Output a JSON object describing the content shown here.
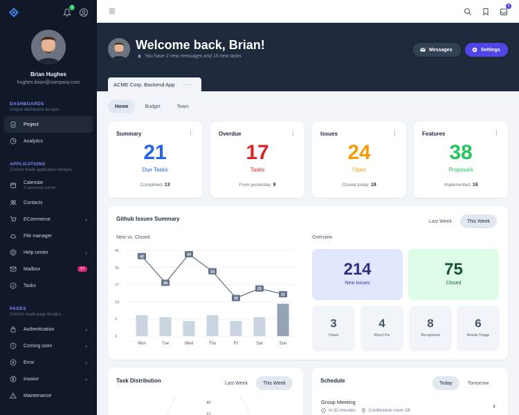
{
  "sidebar": {
    "user": {
      "name": "Brian Hughes",
      "email": "hughes.brian@company.com"
    },
    "notifications_badge": "3",
    "sections": [
      {
        "title": "DASHBOARDS",
        "subtitle": "Unique dashboard designs",
        "items": [
          {
            "label": "Project",
            "icon": "clipboard-icon",
            "active": true
          },
          {
            "label": "Analytics",
            "icon": "chart-pie-icon"
          }
        ]
      },
      {
        "title": "APPLICATIONS",
        "subtitle": "Custom made application designs",
        "items": [
          {
            "label": "Calendar",
            "sub": "3 upcoming events",
            "icon": "calendar-icon"
          },
          {
            "label": "Contacts",
            "icon": "users-icon"
          },
          {
            "label": "ECommerce",
            "icon": "cart-icon",
            "chevron": true
          },
          {
            "label": "File manager",
            "icon": "cloud-icon"
          },
          {
            "label": "Help center",
            "icon": "lifebuoy-icon",
            "chevron": true
          },
          {
            "label": "Mailbox",
            "icon": "mail-icon",
            "badge": "27"
          },
          {
            "label": "Tasks",
            "icon": "check-circle-icon"
          }
        ]
      },
      {
        "title": "PAGES",
        "subtitle": "Custom made page designs",
        "items": [
          {
            "label": "Authentication",
            "icon": "lock-icon",
            "chevron": true
          },
          {
            "label": "Coming soon",
            "icon": "clock-icon",
            "chevron": true
          },
          {
            "label": "Error",
            "icon": "x-circle-icon",
            "chevron": true
          },
          {
            "label": "Invoice",
            "icon": "dollar-icon",
            "chevron": true
          },
          {
            "label": "Maintenance",
            "icon": "warning-icon"
          }
        ]
      }
    ]
  },
  "topbar": {
    "tasks_badge": "5"
  },
  "header": {
    "title": "Welcome back, Brian!",
    "subtitle": "You have 2 new messages and 15 new tasks",
    "messages_label": "Messages",
    "settings_label": "Settings",
    "project_name": "ACME Corp. Backend App"
  },
  "tabs": [
    "Home",
    "Budget",
    "Team"
  ],
  "stats": [
    {
      "title": "Summary",
      "value": "21",
      "label": "Due Tasks",
      "foot_label": "Completed:",
      "foot_value": "13",
      "color": "#2563eb"
    },
    {
      "title": "Overdue",
      "value": "17",
      "label": "Tasks",
      "foot_label": "From yesterday:",
      "foot_value": "9",
      "color": "#dc2626"
    },
    {
      "title": "Issues",
      "value": "24",
      "label": "Open",
      "foot_label": "Closed today:",
      "foot_value": "19",
      "color": "#f59e0b"
    },
    {
      "title": "Features",
      "value": "38",
      "label": "Proposals",
      "foot_label": "Implemented:",
      "foot_value": "16",
      "color": "#22c55e"
    }
  ],
  "github": {
    "title": "Github Issues Summary",
    "range_options": [
      "Last Week",
      "This Week"
    ],
    "chart_subtitle": "New vs. Closed",
    "overview_title": "Overview",
    "overview_main": [
      {
        "value": "214",
        "label": "New Issues"
      },
      {
        "value": "75",
        "label": "Closed"
      }
    ],
    "overview_small": [
      {
        "value": "3",
        "label": "Fixed"
      },
      {
        "value": "4",
        "label": "Won't Fix"
      },
      {
        "value": "8",
        "label": "Re-opened"
      },
      {
        "value": "6",
        "label": "Needs Triage"
      }
    ]
  },
  "chart_data": {
    "type": "line",
    "categories": [
      "Mon",
      "Tue",
      "Wed",
      "Thu",
      "Fri",
      "Sat",
      "Sun"
    ],
    "series": [
      {
        "type": "line",
        "values": [
          42,
          28,
          43,
          34,
          20,
          25,
          22
        ]
      },
      {
        "type": "bar",
        "values": [
          11,
          10,
          8,
          11,
          8,
          10,
          17
        ]
      }
    ],
    "yticks": [
      0,
      9,
      18,
      27,
      36,
      45
    ],
    "ylim": [
      0,
      45
    ],
    "grid": true
  },
  "task_distribution": {
    "title": "Task Distribution",
    "range_options": [
      "Last Week",
      "This Week"
    ],
    "radial_labels": [
      "40",
      "32"
    ]
  },
  "schedule": {
    "title": "Schedule",
    "range_options": [
      "Today",
      "Tomorrow"
    ],
    "event": {
      "title": "Group Meeting",
      "time": "in 32 minutes",
      "location": "Conference room 1B"
    }
  }
}
